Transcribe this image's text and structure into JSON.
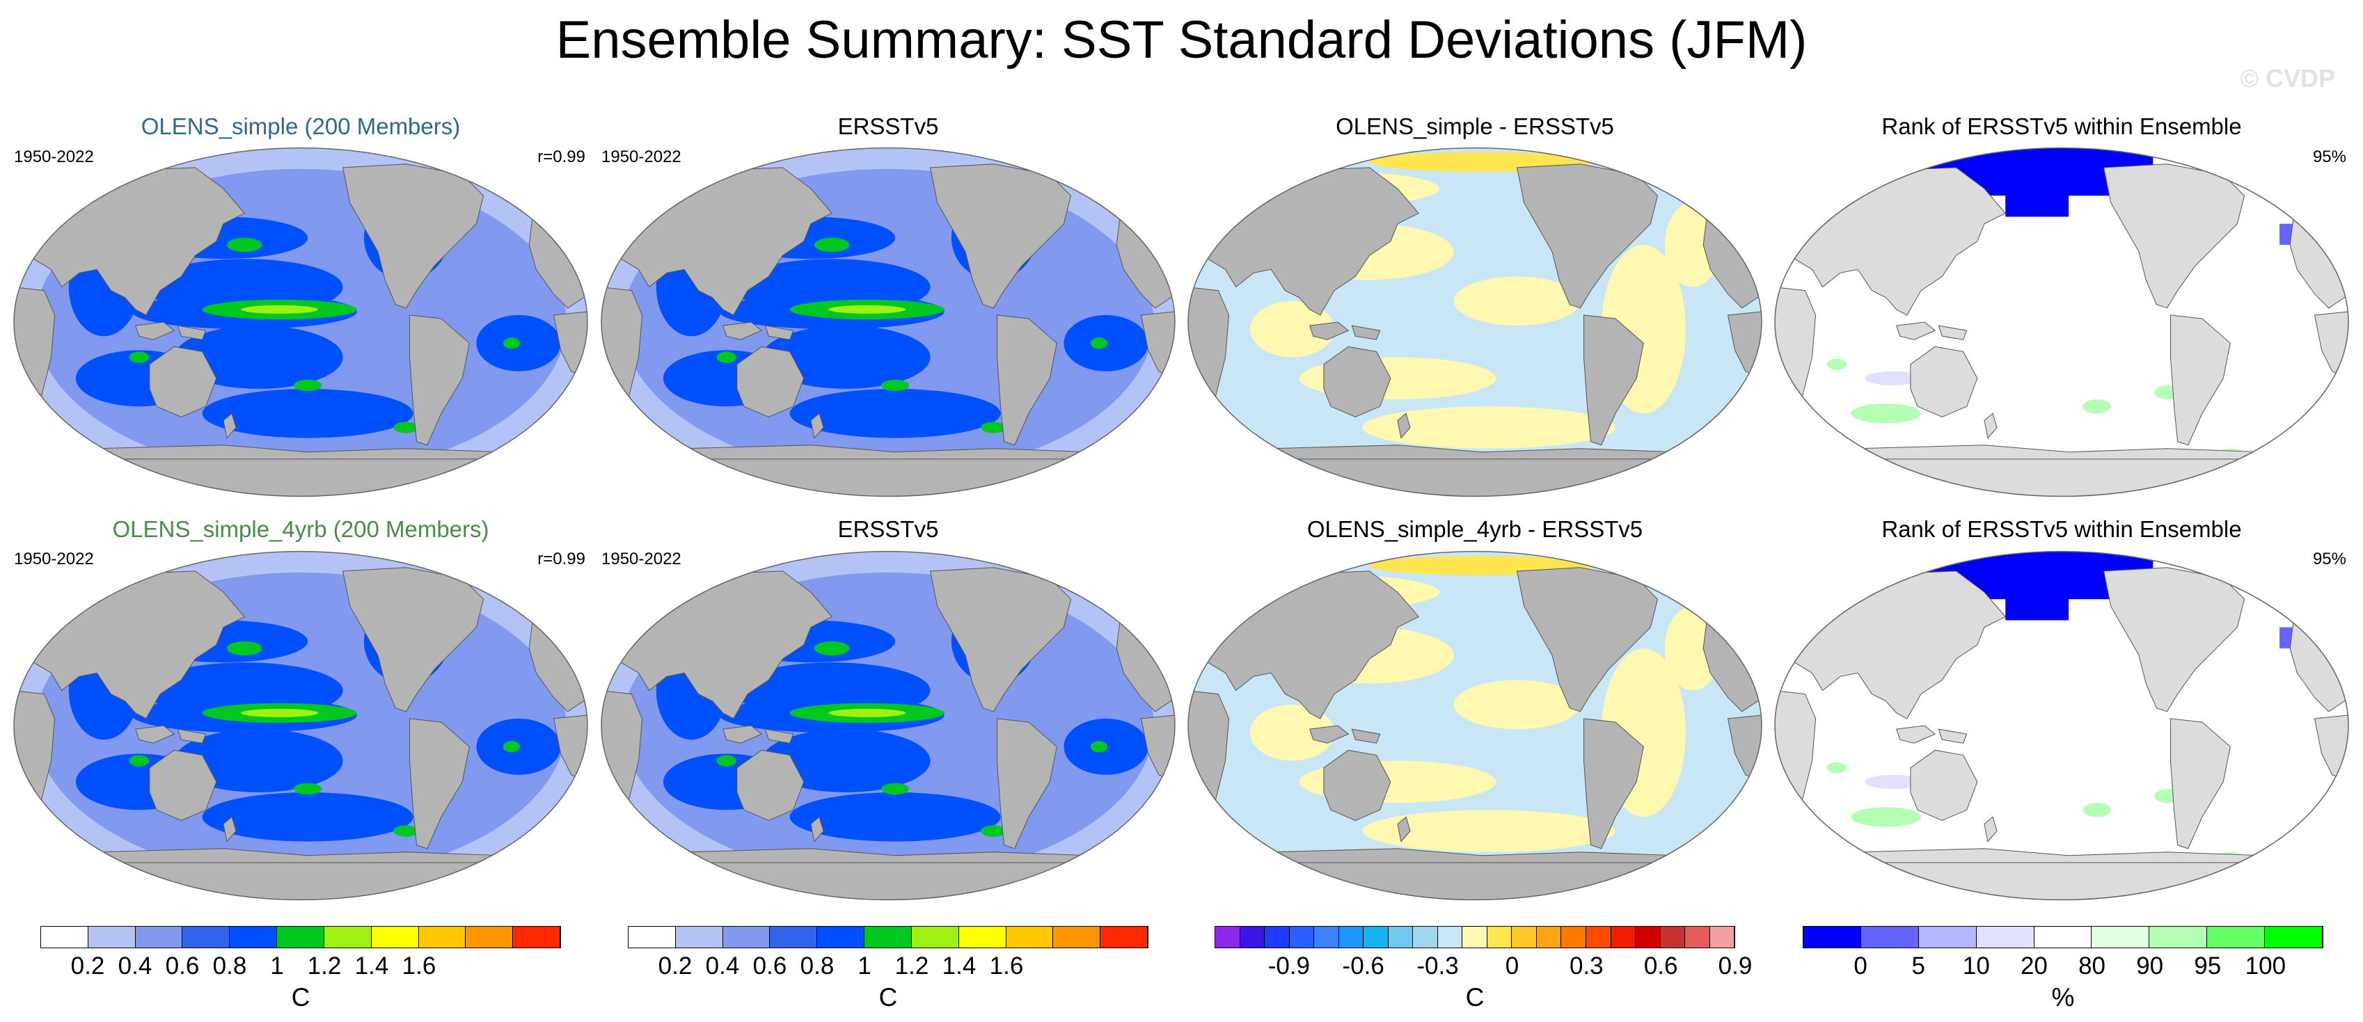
{
  "title": "Ensemble Summary: SST Standard Deviations (JFM)",
  "watermark": "© CVDP",
  "rows": [
    {
      "panels": [
        {
          "title": "OLENS_simple (200 Members)",
          "left_note": "1950-2022",
          "right_note": "r=0.99",
          "title_color": "#2a6a8a",
          "type": "std"
        },
        {
          "title": "ERSSTv5",
          "left_note": "1950-2022",
          "right_note": "",
          "title_color": "#000000",
          "type": "std"
        },
        {
          "title": "OLENS_simple - ERSSTv5",
          "left_note": "",
          "right_note": "",
          "title_color": "#000000",
          "type": "diff"
        },
        {
          "title": "Rank of ERSSTv5 within Ensemble",
          "left_note": "",
          "right_note": "95%",
          "title_color": "#000000",
          "type": "rank"
        }
      ]
    },
    {
      "panels": [
        {
          "title": "OLENS_simple_4yrb (200 Members)",
          "left_note": "1950-2022",
          "right_note": "r=0.99",
          "title_color": "#4a8a4a",
          "type": "std"
        },
        {
          "title": "ERSSTv5",
          "left_note": "1950-2022",
          "right_note": "",
          "title_color": "#000000",
          "type": "std"
        },
        {
          "title": "OLENS_simple_4yrb - ERSSTv5",
          "left_note": "",
          "right_note": "",
          "title_color": "#000000",
          "type": "diff"
        },
        {
          "title": "Rank of ERSSTv5 within Ensemble",
          "left_note": "",
          "right_note": "95%",
          "title_color": "#000000",
          "type": "rank"
        }
      ]
    }
  ],
  "colorbars": [
    {
      "colors": [
        "#ffffff",
        "#b4c3f5",
        "#8299f0",
        "#3264eb",
        "#0050ff",
        "#00c81e",
        "#a0f014",
        "#ffff00",
        "#ffc800",
        "#ff9600",
        "#ff2800"
      ],
      "ticks": [
        "0.2",
        "0.4",
        "0.6",
        "0.8",
        "1",
        "1.2",
        "1.4",
        "1.6"
      ],
      "unit": "C"
    },
    {
      "colors": [
        "#ffffff",
        "#b4c3f5",
        "#8299f0",
        "#3264eb",
        "#0050ff",
        "#00c81e",
        "#a0f014",
        "#ffff00",
        "#ffc800",
        "#ff9600",
        "#ff2800"
      ],
      "ticks": [
        "0.2",
        "0.4",
        "0.6",
        "0.8",
        "1",
        "1.2",
        "1.4",
        "1.6"
      ],
      "unit": "C"
    },
    {
      "colors": [
        "#8c28e6",
        "#3c14e6",
        "#1e3cff",
        "#2860ff",
        "#3c82ff",
        "#1e96ff",
        "#14b4f0",
        "#6ec8f0",
        "#a0d8f0",
        "#c8e6f5",
        "#fff8b0",
        "#ffe650",
        "#ffc828",
        "#ffa514",
        "#ff7800",
        "#ff4b00",
        "#f01e00",
        "#d20000",
        "#c83232",
        "#e65a5a",
        "#f5a0a0"
      ],
      "ticks": [
        "-0.9",
        "-0.6",
        "-0.3",
        "0",
        "0.3",
        "0.6",
        "0.9"
      ],
      "unit": "C"
    },
    {
      "colors": [
        "#0000ff",
        "#6464ff",
        "#b4b4ff",
        "#e1e1ff",
        "#ffffff",
        "#e1ffe1",
        "#b4ffb4",
        "#64ff64",
        "#00ff00"
      ],
      "ticks": [
        "0",
        "5",
        "10",
        "20",
        "80",
        "90",
        "95",
        "100"
      ],
      "unit": "%"
    }
  ],
  "chart_data": {
    "type": "heatmap",
    "title": "Ensemble Summary: SST Standard Deviations (JFM)",
    "period": "1950-2022",
    "projection": "Robinson (Pacific-centered global map)",
    "panels": [
      {
        "row": 1,
        "col": 1,
        "title": "OLENS_simple (200 Members)",
        "pattern_correlation": 0.99,
        "field": "SST std dev",
        "units": "C"
      },
      {
        "row": 1,
        "col": 2,
        "title": "ERSSTv5",
        "field": "SST std dev",
        "units": "C"
      },
      {
        "row": 1,
        "col": 3,
        "title": "OLENS_simple - ERSSTv5",
        "field": "difference",
        "units": "C"
      },
      {
        "row": 1,
        "col": 4,
        "title": "Rank of ERSSTv5 within Ensemble",
        "units": "%",
        "fraction_within_ensemble_range": "95%"
      },
      {
        "row": 2,
        "col": 1,
        "title": "OLENS_simple_4yrb (200 Members)",
        "pattern_correlation": 0.99,
        "field": "SST std dev",
        "units": "C"
      },
      {
        "row": 2,
        "col": 2,
        "title": "ERSSTv5",
        "field": "SST std dev",
        "units": "C"
      },
      {
        "row": 2,
        "col": 3,
        "title": "OLENS_simple_4yrb - ERSSTv5",
        "field": "difference",
        "units": "C"
      },
      {
        "row": 2,
        "col": 4,
        "title": "Rank of ERSSTv5 within Ensemble",
        "units": "%",
        "fraction_within_ensemble_range": "95%"
      }
    ],
    "colorbar_levels": {
      "std_dev": [
        0.2,
        0.4,
        0.6,
        0.8,
        1.0,
        1.2,
        1.4,
        1.6
      ],
      "difference": [
        -0.9,
        -0.6,
        -0.3,
        0,
        0.3,
        0.6,
        0.9
      ],
      "rank": [
        0,
        5,
        10,
        20,
        80,
        90,
        95,
        100
      ]
    }
  }
}
